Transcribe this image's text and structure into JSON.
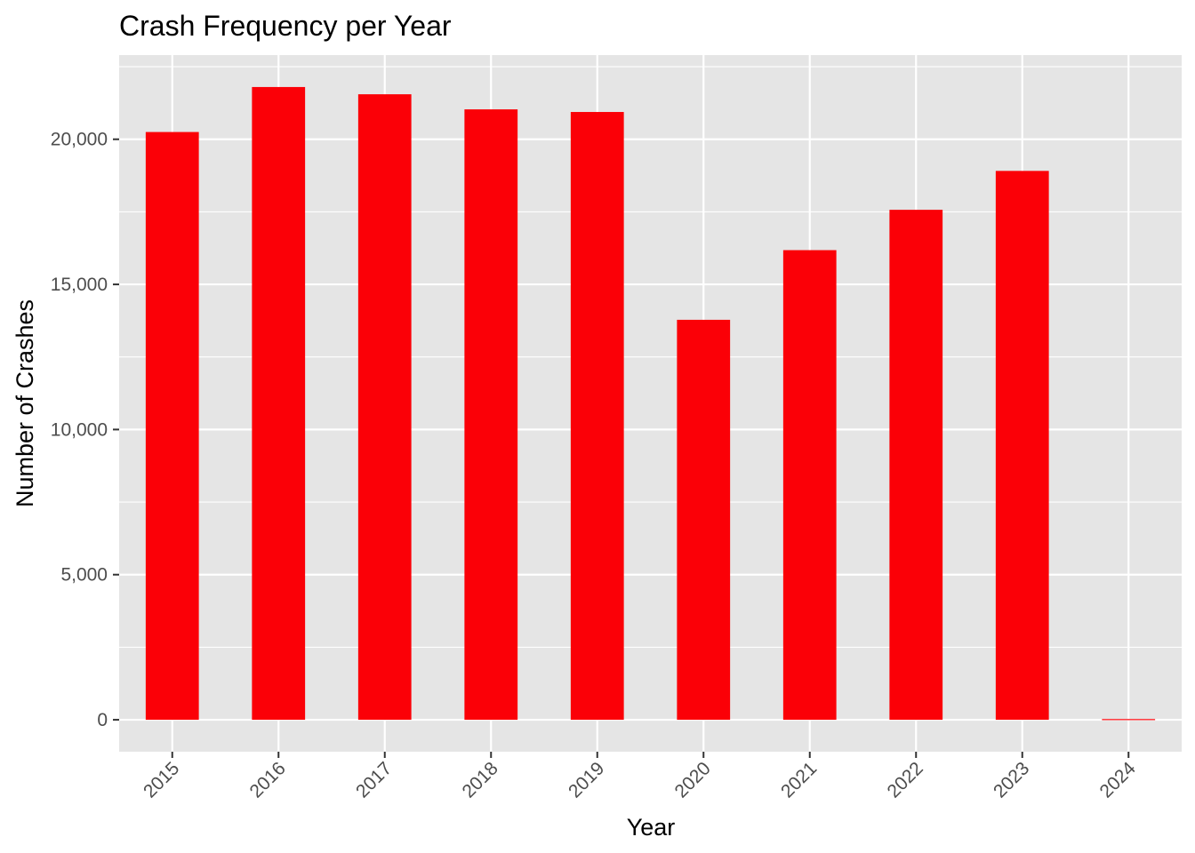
{
  "chart_data": {
    "type": "bar",
    "title": "Crash Frequency per Year",
    "xlabel": "Year",
    "ylabel": "Number of Crashes",
    "categories": [
      "2015",
      "2016",
      "2017",
      "2018",
      "2019",
      "2020",
      "2021",
      "2022",
      "2023",
      "2024"
    ],
    "values": [
      20250,
      21800,
      21550,
      21030,
      20940,
      13780,
      16180,
      17570,
      18910,
      25
    ],
    "ylim": [
      -1100,
      22900
    ],
    "yticks": [
      0,
      5000,
      10000,
      15000,
      20000
    ],
    "ytick_labels": [
      "0",
      "5,000",
      "10,000",
      "15,000",
      "20,000"
    ],
    "bar_color": "#fb0007",
    "panel_color": "#e5e5e5",
    "grid_color": "#ffffff",
    "grid": true,
    "legend": "none"
  }
}
